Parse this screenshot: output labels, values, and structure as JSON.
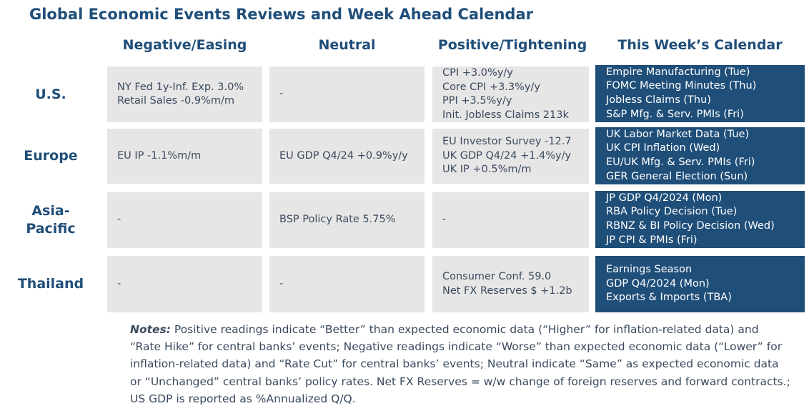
{
  "title": "Global Economic Events Reviews and Week Ahead Calendar",
  "columns": [
    "Negative/Easing",
    "Neutral",
    "Positive/Tightening",
    "This Week’s Calendar"
  ],
  "rows": [
    {
      "label": "U.S.",
      "negative": [
        "NY Fed 1y-Inf. Exp. 3.0%",
        "Retail Sales -0.9%m/m"
      ],
      "neutral": [
        "-"
      ],
      "positive": [
        "CPI +3.0%y/y",
        "Core CPI +3.3%y/y",
        "PPI +3.5%y/y",
        "Init. Jobless Claims 213k"
      ],
      "calendar": [
        "Empire Manufacturing (Tue)",
        "FOMC Meeting Minutes (Thu)",
        "Jobless Claims (Thu)",
        "S&P Mfg. & Serv. PMIs (Fri)"
      ]
    },
    {
      "label": "Europe",
      "negative": [
        "EU IP -1.1%m/m"
      ],
      "neutral": [
        "EU GDP Q4/24 +0.9%y/y"
      ],
      "positive": [
        "EU Investor Survey -12.7",
        "UK GDP Q4/24 +1.4%y/y",
        "UK IP +0.5%m/m"
      ],
      "calendar": [
        "UK Labor Market Data (Tue)",
        "UK CPI Inflation (Wed)",
        "EU/UK Mfg. & Serv. PMIs (Fri)",
        "GER General Election (Sun)"
      ]
    },
    {
      "label": "Asia-Pacific",
      "label_lines": [
        "Asia-",
        "Pacific"
      ],
      "negative": [
        "-"
      ],
      "neutral": [
        "BSP Policy Rate 5.75%"
      ],
      "positive": [
        "-"
      ],
      "calendar": [
        "JP GDP Q4/2024 (Mon)",
        "RBA Policy Decision (Tue)",
        "RBNZ & BI Policy Decision (Wed)",
        "JP CPI & PMIs (Fri)"
      ]
    },
    {
      "label": "Thailand",
      "negative": [
        "-"
      ],
      "neutral": [
        "-"
      ],
      "positive": [
        "Consumer Conf. 59.0",
        "Net FX Reserves $ +1.2b"
      ],
      "calendar": [
        "Earnings Season",
        "GDP Q4/2024 (Mon)",
        "Exports & Imports (TBA)"
      ]
    }
  ],
  "notes": {
    "label": "Notes:",
    "text": " Positive readings indicate “Better” than expected economic data (“Higher” for inflation-related data) and “Rate Hike” for central banks’ events; Negative readings indicate “Worse” than expected economic data (“Lower” for inflation-related data) and “Rate Cut” for central banks’ events; Neutral indicate “Same” as expected economic data or “Unchanged” central banks’ policy rates. Net FX Reserves = w/w change of foreign reserves and forward contracts.; US GDP is reported as %Annualized Q/Q."
  },
  "colors": {
    "title": "#1f4e79",
    "calendar_bg": "#1f4e79",
    "cell_bg": "#e7e6e6",
    "text": "#3a4a5e"
  }
}
